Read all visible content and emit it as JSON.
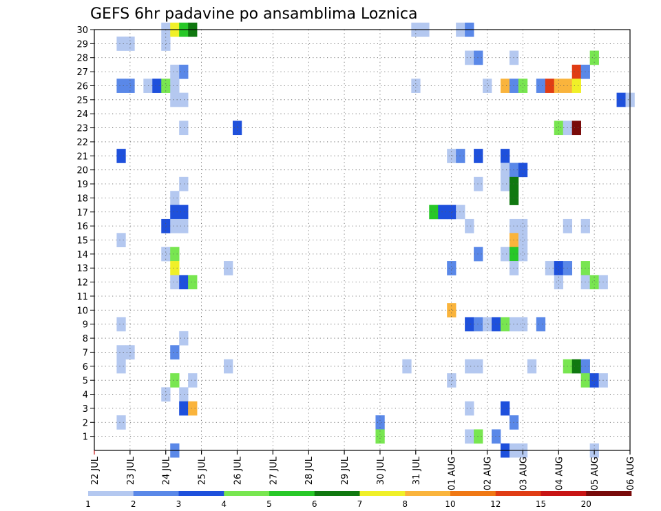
{
  "chart_data": {
    "type": "heatmap",
    "title": "GEFS 6hr padavine po ansamblima Loznica",
    "xlabel": "",
    "ylabel": "",
    "x_ticks": [
      "22 JUL",
      "23 JUL",
      "24 JUL",
      "25 JUL",
      "26 JUL",
      "27 JUL",
      "28 JUL",
      "29 JUL",
      "30 JUL",
      "31 JUL",
      "01 AUG",
      "02 AUG",
      "03 AUG",
      "04 AUG",
      "05 AUG",
      "06 AUG"
    ],
    "y_ticks": [
      1,
      2,
      3,
      4,
      5,
      6,
      7,
      8,
      9,
      10,
      11,
      12,
      13,
      14,
      15,
      16,
      17,
      18,
      19,
      20,
      21,
      22,
      23,
      24,
      25,
      26,
      27,
      28,
      29,
      30
    ],
    "xlim_steps": [
      0,
      60
    ],
    "steps_per_day": 4,
    "ylim": [
      0,
      30
    ],
    "grid": true,
    "colorbar": {
      "levels": [
        "1",
        "2",
        "3",
        "4",
        "5",
        "6",
        "7",
        "8",
        "10",
        "12",
        "15",
        "20"
      ],
      "colors": [
        "#b4c8f0",
        "#5a88e8",
        "#1e50dc",
        "#78e650",
        "#28c828",
        "#107810",
        "#f0f028",
        "#fab43c",
        "#f07814",
        "#e03c14",
        "#c81414",
        "#780a0a"
      ]
    },
    "cells": [
      {
        "m": 30,
        "t": 8,
        "c": 0
      },
      {
        "m": 30,
        "t": 9,
        "c": 6
      },
      {
        "m": 30,
        "t": 10,
        "c": 4
      },
      {
        "m": 30,
        "t": 11,
        "c": 5
      },
      {
        "m": 30,
        "t": 36,
        "c": 0
      },
      {
        "m": 30,
        "t": 37,
        "c": 0
      },
      {
        "m": 30,
        "t": 41,
        "c": 0
      },
      {
        "m": 30,
        "t": 42,
        "c": 1
      },
      {
        "m": 29,
        "t": 3,
        "c": 0
      },
      {
        "m": 29,
        "t": 4,
        "c": 0
      },
      {
        "m": 29,
        "t": 8,
        "c": 0
      },
      {
        "m": 28,
        "t": 42,
        "c": 0
      },
      {
        "m": 28,
        "t": 43,
        "c": 1
      },
      {
        "m": 28,
        "t": 47,
        "c": 0
      },
      {
        "m": 28,
        "t": 56,
        "c": 3
      },
      {
        "m": 27,
        "t": 9,
        "c": 0
      },
      {
        "m": 27,
        "t": 10,
        "c": 1
      },
      {
        "m": 27,
        "t": 54,
        "c": 9
      },
      {
        "m": 27,
        "t": 55,
        "c": 1
      },
      {
        "m": 26,
        "t": 3,
        "c": 1
      },
      {
        "m": 26,
        "t": 4,
        "c": 1
      },
      {
        "m": 26,
        "t": 6,
        "c": 0
      },
      {
        "m": 26,
        "t": 7,
        "c": 2
      },
      {
        "m": 26,
        "t": 8,
        "c": 3
      },
      {
        "m": 26,
        "t": 9,
        "c": 0
      },
      {
        "m": 26,
        "t": 36,
        "c": 0
      },
      {
        "m": 26,
        "t": 44,
        "c": 0
      },
      {
        "m": 26,
        "t": 46,
        "c": 7
      },
      {
        "m": 26,
        "t": 47,
        "c": 1
      },
      {
        "m": 26,
        "t": 48,
        "c": 3
      },
      {
        "m": 26,
        "t": 50,
        "c": 1
      },
      {
        "m": 26,
        "t": 51,
        "c": 9
      },
      {
        "m": 26,
        "t": 52,
        "c": 7
      },
      {
        "m": 26,
        "t": 53,
        "c": 7
      },
      {
        "m": 26,
        "t": 54,
        "c": 6
      },
      {
        "m": 25,
        "t": 9,
        "c": 0
      },
      {
        "m": 25,
        "t": 10,
        "c": 0
      },
      {
        "m": 25,
        "t": 59,
        "c": 2
      },
      {
        "m": 25,
        "t": 60,
        "c": 0
      },
      {
        "m": 23,
        "t": 10,
        "c": 0
      },
      {
        "m": 23,
        "t": 16,
        "c": 2
      },
      {
        "m": 23,
        "t": 52,
        "c": 3
      },
      {
        "m": 23,
        "t": 53,
        "c": 0
      },
      {
        "m": 23,
        "t": 54,
        "c": 11
      },
      {
        "m": 21,
        "t": 3,
        "c": 2
      },
      {
        "m": 21,
        "t": 40,
        "c": 0
      },
      {
        "m": 21,
        "t": 41,
        "c": 1
      },
      {
        "m": 21,
        "t": 43,
        "c": 2
      },
      {
        "m": 21,
        "t": 46,
        "c": 2
      },
      {
        "m": 20,
        "t": 46,
        "c": 0
      },
      {
        "m": 20,
        "t": 47,
        "c": 1
      },
      {
        "m": 20,
        "t": 48,
        "c": 2
      },
      {
        "m": 19,
        "t": 10,
        "c": 0
      },
      {
        "m": 19,
        "t": 43,
        "c": 0
      },
      {
        "m": 19,
        "t": 46,
        "c": 0
      },
      {
        "m": 19,
        "t": 47,
        "c": 5
      },
      {
        "m": 18,
        "t": 9,
        "c": 0
      },
      {
        "m": 18,
        "t": 47,
        "c": 5
      },
      {
        "m": 17,
        "t": 9,
        "c": 2
      },
      {
        "m": 17,
        "t": 10,
        "c": 2
      },
      {
        "m": 17,
        "t": 38,
        "c": 4
      },
      {
        "m": 17,
        "t": 39,
        "c": 2
      },
      {
        "m": 17,
        "t": 40,
        "c": 2
      },
      {
        "m": 17,
        "t": 41,
        "c": 0
      },
      {
        "m": 16,
        "t": 8,
        "c": 2
      },
      {
        "m": 16,
        "t": 9,
        "c": 0
      },
      {
        "m": 16,
        "t": 10,
        "c": 0
      },
      {
        "m": 16,
        "t": 42,
        "c": 0
      },
      {
        "m": 16,
        "t": 47,
        "c": 0
      },
      {
        "m": 16,
        "t": 48,
        "c": 0
      },
      {
        "m": 16,
        "t": 53,
        "c": 0
      },
      {
        "m": 16,
        "t": 55,
        "c": 0
      },
      {
        "m": 15,
        "t": 3,
        "c": 0
      },
      {
        "m": 15,
        "t": 47,
        "c": 7
      },
      {
        "m": 15,
        "t": 48,
        "c": 0
      },
      {
        "m": 14,
        "t": 8,
        "c": 0
      },
      {
        "m": 14,
        "t": 9,
        "c": 3
      },
      {
        "m": 14,
        "t": 43,
        "c": 1
      },
      {
        "m": 14,
        "t": 46,
        "c": 0
      },
      {
        "m": 14,
        "t": 47,
        "c": 4
      },
      {
        "m": 14,
        "t": 48,
        "c": 0
      },
      {
        "m": 13,
        "t": 9,
        "c": 6
      },
      {
        "m": 13,
        "t": 15,
        "c": 0
      },
      {
        "m": 13,
        "t": 40,
        "c": 1
      },
      {
        "m": 13,
        "t": 47,
        "c": 0
      },
      {
        "m": 13,
        "t": 51,
        "c": 0
      },
      {
        "m": 13,
        "t": 52,
        "c": 2
      },
      {
        "m": 13,
        "t": 53,
        "c": 1
      },
      {
        "m": 13,
        "t": 55,
        "c": 3
      },
      {
        "m": 12,
        "t": 9,
        "c": 0
      },
      {
        "m": 12,
        "t": 10,
        "c": 2
      },
      {
        "m": 12,
        "t": 11,
        "c": 3
      },
      {
        "m": 12,
        "t": 52,
        "c": 0
      },
      {
        "m": 12,
        "t": 55,
        "c": 0
      },
      {
        "m": 12,
        "t": 56,
        "c": 3
      },
      {
        "m": 12,
        "t": 57,
        "c": 0
      },
      {
        "m": 10,
        "t": 40,
        "c": 7
      },
      {
        "m": 9,
        "t": 3,
        "c": 0
      },
      {
        "m": 9,
        "t": 42,
        "c": 2
      },
      {
        "m": 9,
        "t": 43,
        "c": 1
      },
      {
        "m": 9,
        "t": 44,
        "c": 0
      },
      {
        "m": 9,
        "t": 45,
        "c": 2
      },
      {
        "m": 9,
        "t": 46,
        "c": 3
      },
      {
        "m": 9,
        "t": 47,
        "c": 0
      },
      {
        "m": 9,
        "t": 48,
        "c": 0
      },
      {
        "m": 9,
        "t": 50,
        "c": 1
      },
      {
        "m": 8,
        "t": 10,
        "c": 0
      },
      {
        "m": 7,
        "t": 3,
        "c": 0
      },
      {
        "m": 7,
        "t": 4,
        "c": 0
      },
      {
        "m": 7,
        "t": 9,
        "c": 1
      },
      {
        "m": 6,
        "t": 3,
        "c": 0
      },
      {
        "m": 6,
        "t": 15,
        "c": 0
      },
      {
        "m": 6,
        "t": 35,
        "c": 0
      },
      {
        "m": 6,
        "t": 42,
        "c": 0
      },
      {
        "m": 6,
        "t": 43,
        "c": 0
      },
      {
        "m": 6,
        "t": 49,
        "c": 0
      },
      {
        "m": 6,
        "t": 53,
        "c": 3
      },
      {
        "m": 6,
        "t": 54,
        "c": 5
      },
      {
        "m": 6,
        "t": 55,
        "c": 1
      },
      {
        "m": 5,
        "t": 9,
        "c": 3
      },
      {
        "m": 5,
        "t": 11,
        "c": 0
      },
      {
        "m": 5,
        "t": 40,
        "c": 0
      },
      {
        "m": 5,
        "t": 55,
        "c": 3
      },
      {
        "m": 5,
        "t": 56,
        "c": 2
      },
      {
        "m": 5,
        "t": 57,
        "c": 0
      },
      {
        "m": 4,
        "t": 8,
        "c": 0
      },
      {
        "m": 4,
        "t": 10,
        "c": 0
      },
      {
        "m": 3,
        "t": 10,
        "c": 2
      },
      {
        "m": 3,
        "t": 11,
        "c": 7
      },
      {
        "m": 3,
        "t": 42,
        "c": 0
      },
      {
        "m": 3,
        "t": 46,
        "c": 2
      },
      {
        "m": 2,
        "t": 3,
        "c": 0
      },
      {
        "m": 2,
        "t": 32,
        "c": 1
      },
      {
        "m": 2,
        "t": 47,
        "c": 1
      },
      {
        "m": 1,
        "t": 32,
        "c": 3
      },
      {
        "m": 1,
        "t": 42,
        "c": 0
      },
      {
        "m": 1,
        "t": 43,
        "c": 3
      },
      {
        "m": 1,
        "t": 45,
        "c": 1
      },
      {
        "m": 0,
        "t": 9,
        "c": 1
      },
      {
        "m": 0,
        "t": 46,
        "c": 2
      },
      {
        "m": 0,
        "t": 47,
        "c": 0
      },
      {
        "m": 0,
        "t": 48,
        "c": 0
      },
      {
        "m": 0,
        "t": 56,
        "c": 0
      }
    ]
  }
}
